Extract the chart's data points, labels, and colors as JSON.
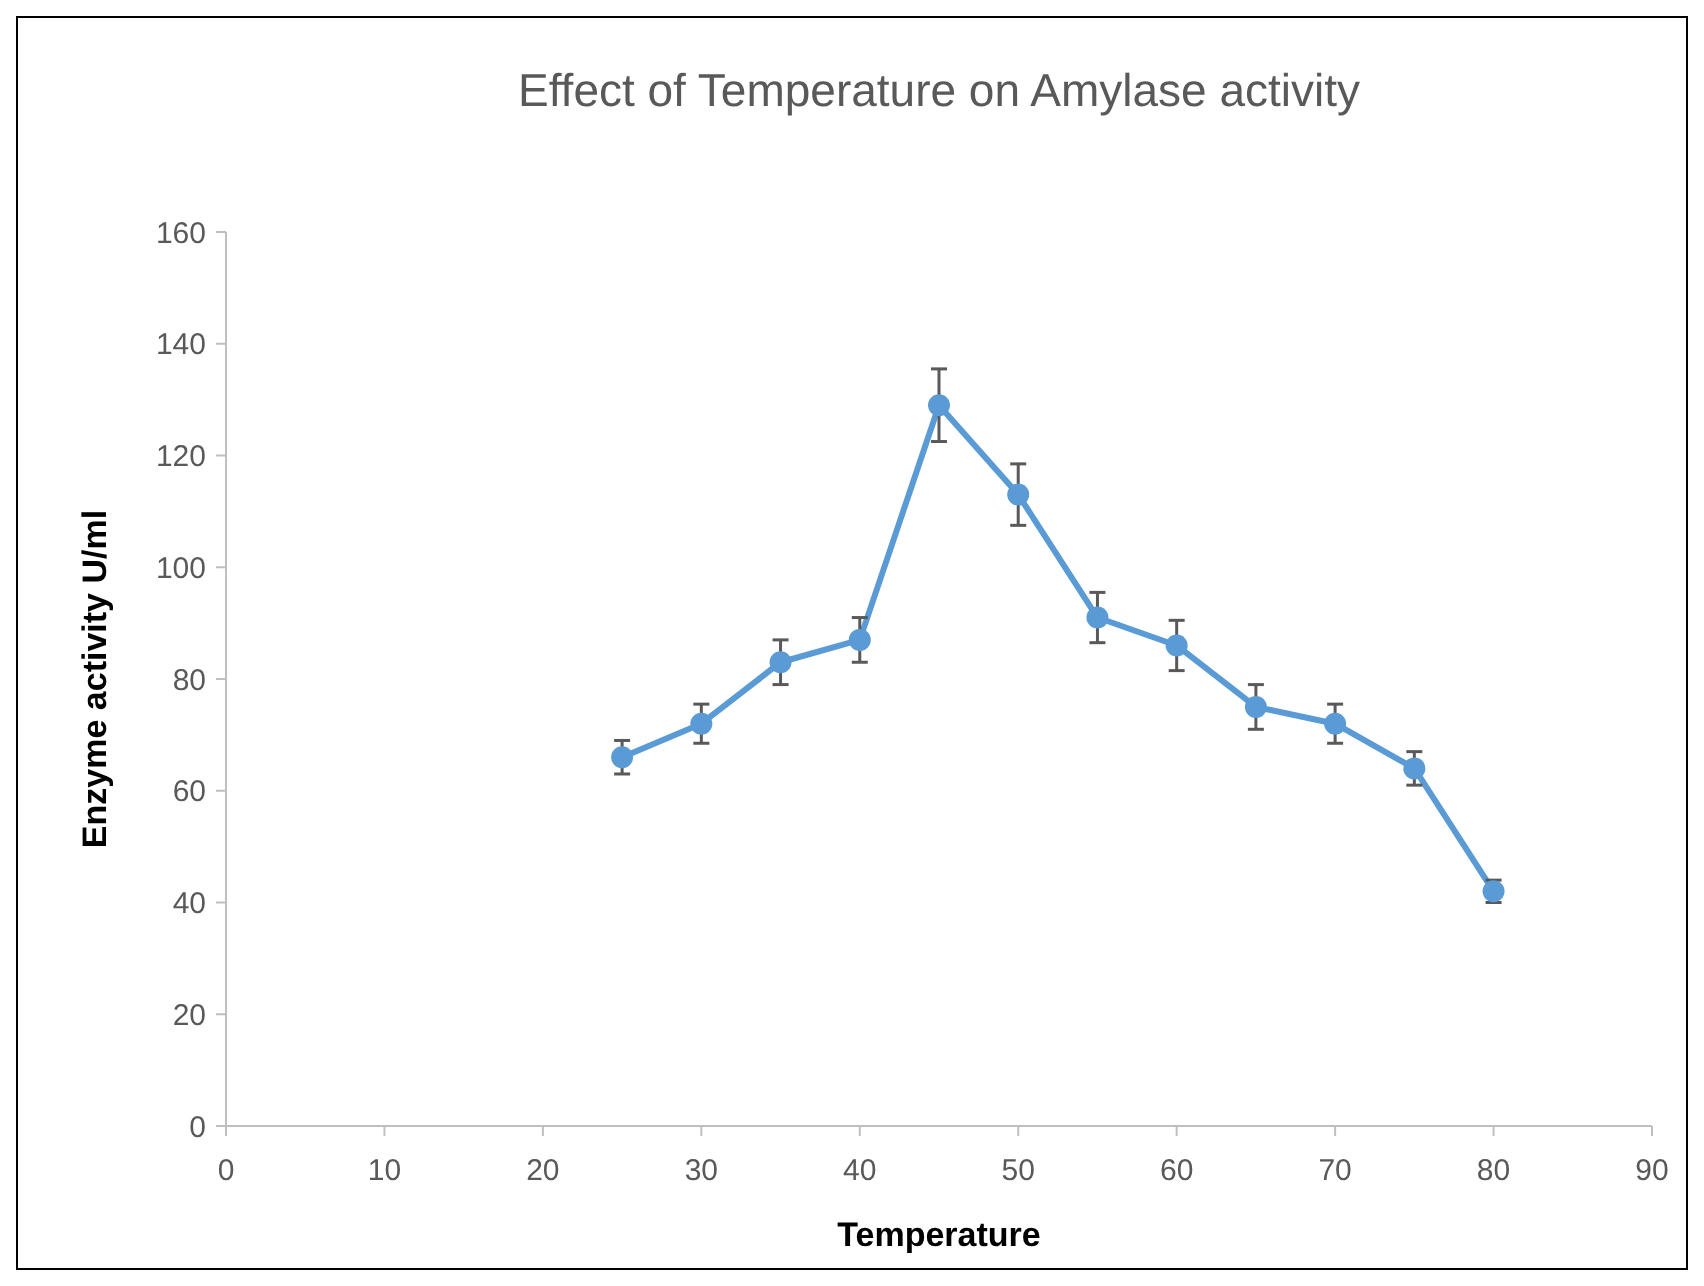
{
  "chart_data": {
    "type": "line",
    "title": "Effect of Temperature on Amylase activity",
    "xlabel": "Temperature",
    "ylabel": "Enzyme activity U/ml",
    "x": [
      25,
      30,
      35,
      40,
      45,
      50,
      55,
      60,
      65,
      70,
      75,
      80
    ],
    "series": [
      {
        "color": "#5b9bd5",
        "values": [
          66,
          72,
          83,
          87,
          129,
          113,
          91,
          86,
          75,
          72,
          64,
          42
        ],
        "errors": [
          3,
          3.5,
          4,
          4,
          6.5,
          5.5,
          4.5,
          4.5,
          4,
          3.5,
          3,
          2
        ]
      }
    ],
    "xlim": [
      0,
      90
    ],
    "xticks": [
      0,
      10,
      20,
      30,
      40,
      50,
      60,
      70,
      80,
      90
    ],
    "ylim": [
      0,
      160
    ],
    "yticks": [
      0,
      20,
      40,
      60,
      80,
      100,
      120,
      140,
      160
    ],
    "grid": false,
    "marker": "circle",
    "line_style": "solid"
  }
}
